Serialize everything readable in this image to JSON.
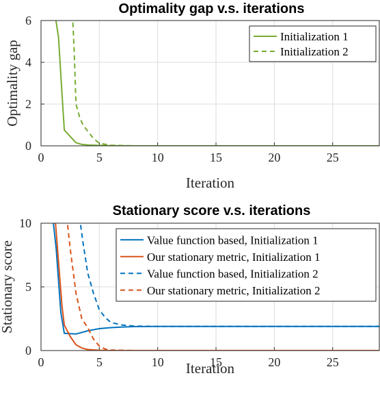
{
  "chart_data": [
    {
      "type": "line",
      "title": "Optimality gap v.s. iterations",
      "xlabel": "Iteration",
      "ylabel": "Optimality gap",
      "xlim": [
        0,
        29
      ],
      "ylim": [
        0,
        6
      ],
      "xticks": [
        "0",
        "5",
        "10",
        "15",
        "20",
        "25"
      ],
      "yticks": [
        "0",
        "2",
        "4",
        "6"
      ],
      "grid": true,
      "legend_position": "top-right",
      "series": [
        {
          "name": "Initialization 1",
          "color": "#77ac30",
          "dash": "solid",
          "x": [
            1.2,
            1.5,
            1.8,
            2,
            2.5,
            3,
            3.5,
            4,
            5,
            6,
            8,
            29
          ],
          "y": [
            6.3,
            5.2,
            2.5,
            0.75,
            0.45,
            0.15,
            0.07,
            0.04,
            0.02,
            0.01,
            0.0,
            0.0
          ]
        },
        {
          "name": "Initialization 2",
          "color": "#77ac30",
          "dash": "dashed",
          "x": [
            2.7,
            2.85,
            3,
            3.3,
            3.6,
            4,
            4.5,
            5,
            6,
            8,
            29
          ],
          "y": [
            6.3,
            4.5,
            2.0,
            1.4,
            1.0,
            0.7,
            0.35,
            0.12,
            0.03,
            0.0,
            0.0
          ]
        }
      ]
    },
    {
      "type": "line",
      "title": "Stationary score v.s. iterations",
      "xlabel": "Iteration",
      "ylabel": "Stationary score",
      "xlim": [
        0,
        29
      ],
      "ylim": [
        0,
        10
      ],
      "xticks": [
        "0",
        "5",
        "10",
        "15",
        "20",
        "25"
      ],
      "yticks": [
        "0",
        "5",
        "10"
      ],
      "grid": true,
      "legend_position": "top-right",
      "series": [
        {
          "name": "Value function based, Initialization 1",
          "color": "#0072bd",
          "dash": "solid",
          "x": [
            1.0,
            1.3,
            1.7,
            2,
            3,
            4,
            5,
            6,
            7,
            8,
            10,
            29
          ],
          "y": [
            10.5,
            8.0,
            3.0,
            1.35,
            1.3,
            1.55,
            1.72,
            1.8,
            1.85,
            1.88,
            1.9,
            1.9
          ]
        },
        {
          "name": "Our stationary metric, Initialization 1",
          "color": "#d95319",
          "dash": "solid",
          "x": [
            1.2,
            1.5,
            1.8,
            2,
            2.5,
            3,
            3.5,
            4,
            5,
            6,
            8,
            29
          ],
          "y": [
            10.5,
            7.0,
            3.5,
            2.0,
            1.1,
            0.45,
            0.2,
            0.08,
            0.02,
            0.0,
            0.0,
            0.0
          ]
        },
        {
          "name": "Value function based, Initialization 2",
          "color": "#0072bd",
          "dash": "dashed",
          "x": [
            3.3,
            3.6,
            4,
            4.5,
            5,
            5.5,
            6,
            7,
            8,
            10,
            29
          ],
          "y": [
            10.5,
            8.5,
            6.1,
            4.5,
            3.2,
            2.6,
            2.2,
            2.0,
            1.92,
            1.9,
            1.9
          ]
        },
        {
          "name": "Our stationary metric, Initialization 2",
          "color": "#d95319",
          "dash": "dashed",
          "x": [
            2.2,
            2.5,
            3,
            3.5,
            4,
            4.5,
            5,
            5.5,
            6,
            8,
            29
          ],
          "y": [
            10.5,
            8.0,
            4.5,
            2.5,
            1.8,
            0.9,
            0.35,
            0.12,
            0.04,
            0.0,
            0.0
          ]
        }
      ]
    }
  ]
}
